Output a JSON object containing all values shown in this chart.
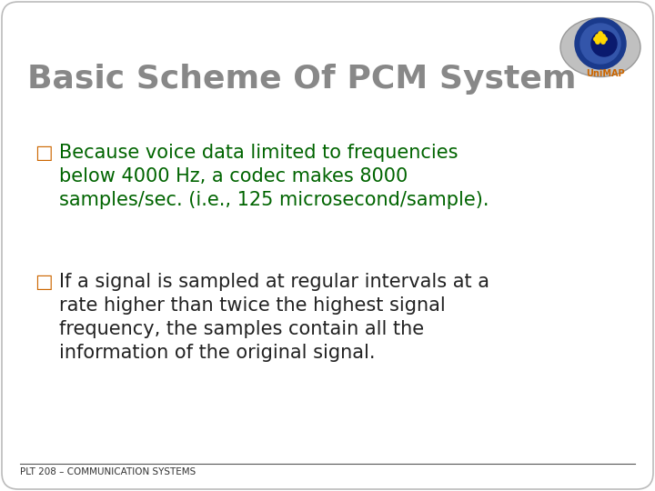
{
  "title": "Basic Scheme Of PCM System",
  "title_color": "#888888",
  "title_fontsize": 26,
  "title_bold": true,
  "bullet1_marker": "□",
  "bullet1_text_line1": "Because voice data limited to frequencies",
  "bullet1_text_line2": "below 4000 Hz, a codec makes 8000",
  "bullet1_text_line3": "samples/sec. (i.e., 125 microsecond/sample).",
  "bullet1_color": "#006400",
  "bullet1_marker_color": "#cc6600",
  "bullet2_marker": "□",
  "bullet2_text_line1": "If a signal is sampled at regular intervals at a",
  "bullet2_text_line2": "rate higher than twice the highest signal",
  "bullet2_text_line3": "frequency, the samples contain all the",
  "bullet2_text_line4": "information of the original signal.",
  "bullet2_color": "#222222",
  "bullet2_marker_color": "#cc6600",
  "bullet_fontsize": 15,
  "footer_text": "PLT 208 – COMMUNICATION SYSTEMS",
  "footer_color": "#333333",
  "footer_fontsize": 7.5,
  "bg_color": "#ffffff",
  "border_color": "#bbbbbb",
  "slide_bg": "#ffffff"
}
